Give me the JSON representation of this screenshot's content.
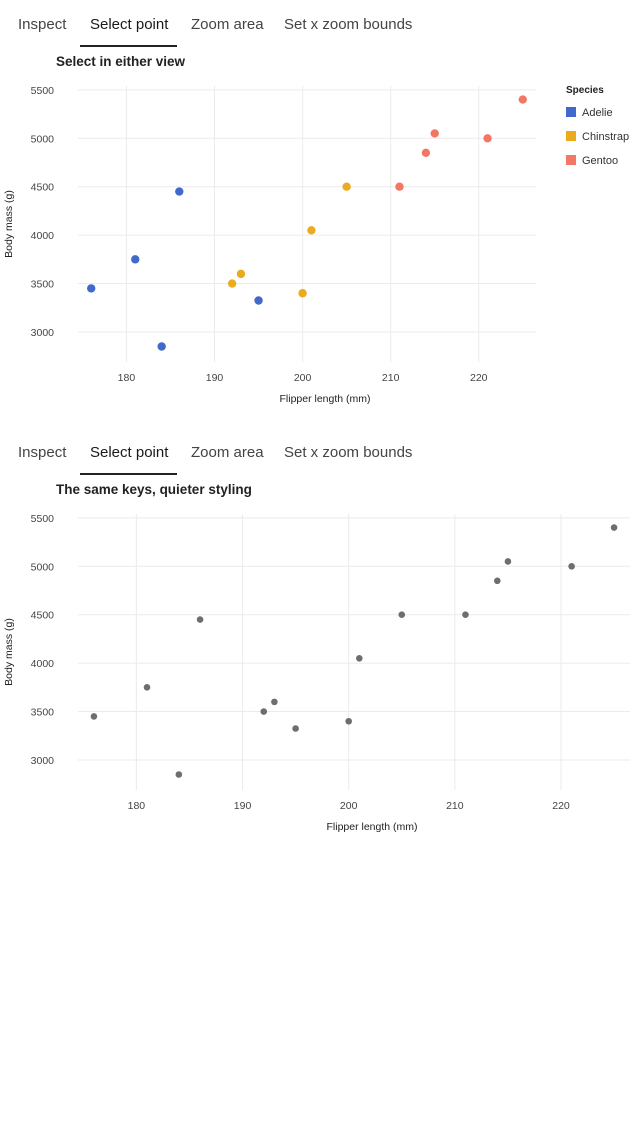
{
  "tabs": [
    "Inspect",
    "Select point",
    "Zoom area",
    "Set x zoom bounds"
  ],
  "active_tab": 1,
  "chart_data": [
    {
      "type": "scatter",
      "title": "Select in either view",
      "xlabel": "Flipper length (mm)",
      "ylabel": "Body mass (g)",
      "xlim": [
        174.5,
        226.5
      ],
      "ylim": [
        2690,
        5540
      ],
      "xticks": [
        180,
        190,
        200,
        210,
        220
      ],
      "yticks": [
        3000,
        3500,
        4000,
        4500,
        5000,
        5500
      ],
      "grid": true,
      "legend": {
        "title": "Species",
        "position": "right"
      },
      "series": [
        {
          "name": "Adelie",
          "color": "#4169cc",
          "points": [
            [
              176,
              3450
            ],
            [
              181,
              3750
            ],
            [
              184,
              2850
            ],
            [
              186,
              4450
            ],
            [
              195,
              3325
            ]
          ]
        },
        {
          "name": "Chinstrap",
          "color": "#eaab1f",
          "points": [
            [
              192,
              3500
            ],
            [
              193,
              3600
            ],
            [
              200,
              3400
            ],
            [
              201,
              4050
            ],
            [
              205,
              4500
            ]
          ]
        },
        {
          "name": "Gentoo",
          "color": "#f27866",
          "points": [
            [
              211,
              4500
            ],
            [
              214,
              4850
            ],
            [
              215,
              5050
            ],
            [
              221,
              5000
            ],
            [
              225,
              5400
            ]
          ]
        }
      ]
    },
    {
      "type": "scatter",
      "title": "The same keys, quieter styling",
      "xlabel": "Flipper length (mm)",
      "ylabel": "Body mass (g)",
      "xlim": [
        174.5,
        226.5
      ],
      "ylim": [
        2690,
        5540
      ],
      "xticks": [
        180,
        190,
        200,
        210,
        220
      ],
      "yticks": [
        3000,
        3500,
        4000,
        4500,
        5000,
        5500
      ],
      "grid": true,
      "series": [
        {
          "color": "#6e6e6e",
          "points": [
            [
              176,
              3450
            ],
            [
              181,
              3750
            ],
            [
              184,
              2850
            ],
            [
              186,
              4450
            ],
            [
              195,
              3325
            ],
            [
              192,
              3500
            ],
            [
              193,
              3600
            ],
            [
              200,
              3400
            ],
            [
              201,
              4050
            ],
            [
              205,
              4500
            ],
            [
              211,
              4500
            ],
            [
              214,
              4850
            ],
            [
              215,
              5050
            ],
            [
              221,
              5000
            ],
            [
              225,
              5400
            ]
          ]
        }
      ]
    }
  ]
}
